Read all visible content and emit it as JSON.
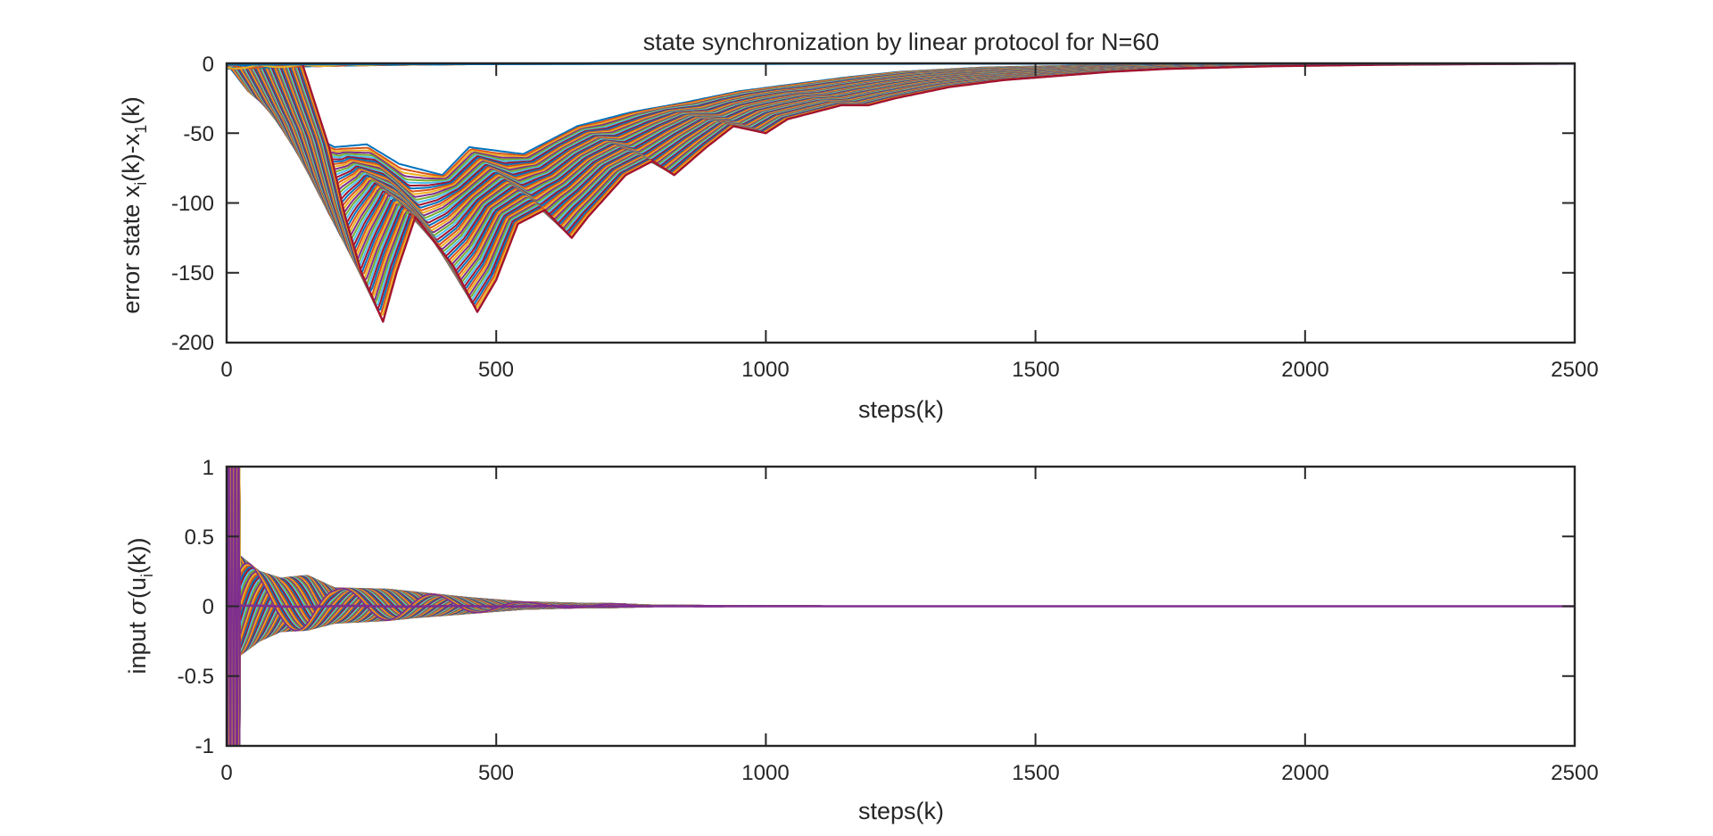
{
  "figure": {
    "title": "state synchronization by linear protocol for N=60"
  },
  "colors": {
    "axis": "#262626",
    "series_palette": [
      "#0072BD",
      "#D95319",
      "#EDB120",
      "#7E2F8E",
      "#77AC30",
      "#4DBEEE",
      "#A2142F"
    ]
  },
  "chart_data": [
    {
      "type": "line",
      "name": "error-state",
      "xlabel_main": "steps(k)",
      "ylabel": "error state x_i(k)-x_1(k)",
      "ylabel_parts": {
        "a": "error state x",
        "b": "i",
        "c": "(k)-x",
        "d": "1",
        "e": "(k)"
      },
      "xlim": [
        0,
        2500
      ],
      "ylim": [
        -200,
        0
      ],
      "xticks": [
        "0",
        "500",
        "1000",
        "1500",
        "2000",
        "2500"
      ],
      "yticks": [
        "0",
        "-50",
        "-100",
        "-150",
        "-200"
      ],
      "grid": false,
      "series_count": 60,
      "envelope_lower": {
        "x": [
          0,
          50,
          80,
          110,
          150,
          175,
          210,
          240,
          280,
          325,
          360,
          400,
          450,
          500,
          530,
          600,
          650,
          690,
          750,
          800,
          860,
          900,
          1000,
          1050,
          1100,
          1200,
          1300,
          1400,
          1500,
          1600,
          1800,
          2000,
          2200,
          2500
        ],
        "y": [
          0,
          -60,
          -110,
          -150,
          -185,
          -150,
          -110,
          -125,
          -145,
          -178,
          -155,
          -115,
          -105,
          -125,
          -110,
          -80,
          -70,
          -80,
          -60,
          -45,
          -50,
          -40,
          -30,
          -30,
          -25,
          -17,
          -12,
          -9,
          -6,
          -4,
          -2,
          -1,
          -0.5,
          0
        ]
      },
      "envelope_upper": {
        "x": [
          0,
          40,
          90,
          150,
          200,
          260,
          320,
          400,
          450,
          550,
          650,
          750,
          850,
          950,
          1050,
          1150,
          1250,
          1400,
          1600,
          1800,
          2000,
          2200,
          2500
        ],
        "y": [
          0,
          -20,
          -32,
          -50,
          -60,
          -58,
          -72,
          -80,
          -60,
          -65,
          -45,
          -35,
          -28,
          -20,
          -15,
          -10,
          -6,
          -3,
          -1.5,
          -0.8,
          -0.3,
          0,
          0
        ]
      },
      "wave": {
        "period": 170,
        "amp_start": 22,
        "decay_scale": 450
      },
      "near_zero_band": {
        "amplitude": 4,
        "decay_until": 600
      }
    },
    {
      "type": "line",
      "name": "input",
      "xlabel_main": "steps(k)",
      "ylabel": "input σ(u_i(k))",
      "ylabel_parts": {
        "a": "input ",
        "sigma": "σ",
        "b": "(u",
        "c": "i",
        "d": "(k))"
      },
      "xlim": [
        0,
        2500
      ],
      "ylim": [
        -1,
        1
      ],
      "xticks": [
        "0",
        "500",
        "1000",
        "1500",
        "2000",
        "2500"
      ],
      "yticks": [
        "1",
        "0.5",
        "0",
        "-0.5",
        "-1"
      ],
      "grid": false,
      "series_count": 60,
      "initial_saturation_until": 25,
      "envelope": {
        "x": [
          25,
          60,
          100,
          150,
          200,
          300,
          350,
          450,
          550,
          650,
          700,
          800,
          900,
          1000,
          1200,
          2500
        ],
        "upper": [
          0.36,
          0.25,
          0.2,
          0.22,
          0.13,
          0.12,
          0.1,
          0.06,
          0.03,
          0.02,
          0.02,
          0.005,
          0.004,
          0.002,
          0,
          0
        ],
        "lower": [
          -0.35,
          -0.25,
          -0.18,
          -0.17,
          -0.12,
          -0.1,
          -0.08,
          -0.05,
          -0.02,
          -0.01,
          -0.01,
          0,
          0,
          0,
          0,
          0
        ]
      },
      "wave": {
        "period": 170,
        "decay_scale": 350
      }
    }
  ]
}
